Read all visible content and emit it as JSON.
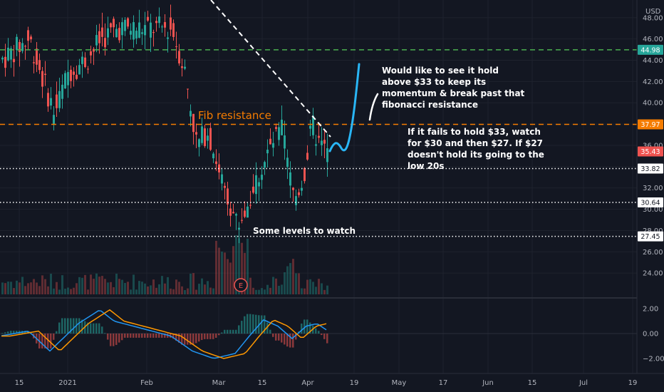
{
  "chart_data": {
    "type": "candlestick",
    "currency": "USD",
    "price_axis": {
      "ticks": [
        "48.00",
        "46.00",
        "44.00",
        "42.00",
        "40.00",
        "38.00",
        "36.00",
        "34.00",
        "32.00",
        "30.00",
        "28.00",
        "26.00",
        "24.00"
      ],
      "range": [
        22,
        49
      ]
    },
    "price_labels": [
      {
        "value": 44.98,
        "text": "44.98",
        "color": "#26a69a"
      },
      {
        "value": 37.97,
        "text": "37.97",
        "color": "#f57c00"
      },
      {
        "value": 35.43,
        "text": "35.43",
        "color": "#ef5350"
      },
      {
        "value": 33.82,
        "text": "33.82",
        "color": "#ffffff"
      },
      {
        "value": 30.64,
        "text": "30.64",
        "color": "#ffffff"
      },
      {
        "value": 27.45,
        "text": "27.45",
        "color": "#ffffff"
      }
    ],
    "horizontal_levels": [
      {
        "value": 44.98,
        "style": "dashed",
        "color": "#4caf50"
      },
      {
        "value": 37.97,
        "style": "dashed",
        "color": "#f57c00"
      },
      {
        "value": 33.82,
        "style": "dotted",
        "color": "#ffffff"
      },
      {
        "value": 30.64,
        "style": "dotted",
        "color": "#ffffff"
      },
      {
        "value": 27.45,
        "style": "dotted",
        "color": "#ffffff"
      }
    ],
    "time_axis": [
      "15",
      "2021",
      "Feb",
      "Mar",
      "15",
      "Apr",
      "19",
      "May",
      "17",
      "Jun",
      "15",
      "Jul",
      "19"
    ],
    "oscillator": {
      "ticks": [
        "2.00",
        "0.00",
        "−2.00"
      ],
      "range": [
        -2.6,
        2.6
      ],
      "macd_color": "#2196f3",
      "signal_color": "#ff9800"
    },
    "annotations": {
      "fib_label": "Fib resistance",
      "note_top": [
        "Would like to see it hold",
        "above $33 to keep its",
        "momentum & break past that",
        "fibonacci resistance"
      ],
      "note_right": [
        "If it fails to hold $33, watch",
        "for $30 and then $27. If $27",
        "doesn't hold its going to the",
        "low 20s"
      ],
      "levels_label": "Some levels to watch",
      "earnings_marker": "E"
    },
    "projection_path_color": "#29b6f6",
    "trendline_color": "#ffffff"
  }
}
